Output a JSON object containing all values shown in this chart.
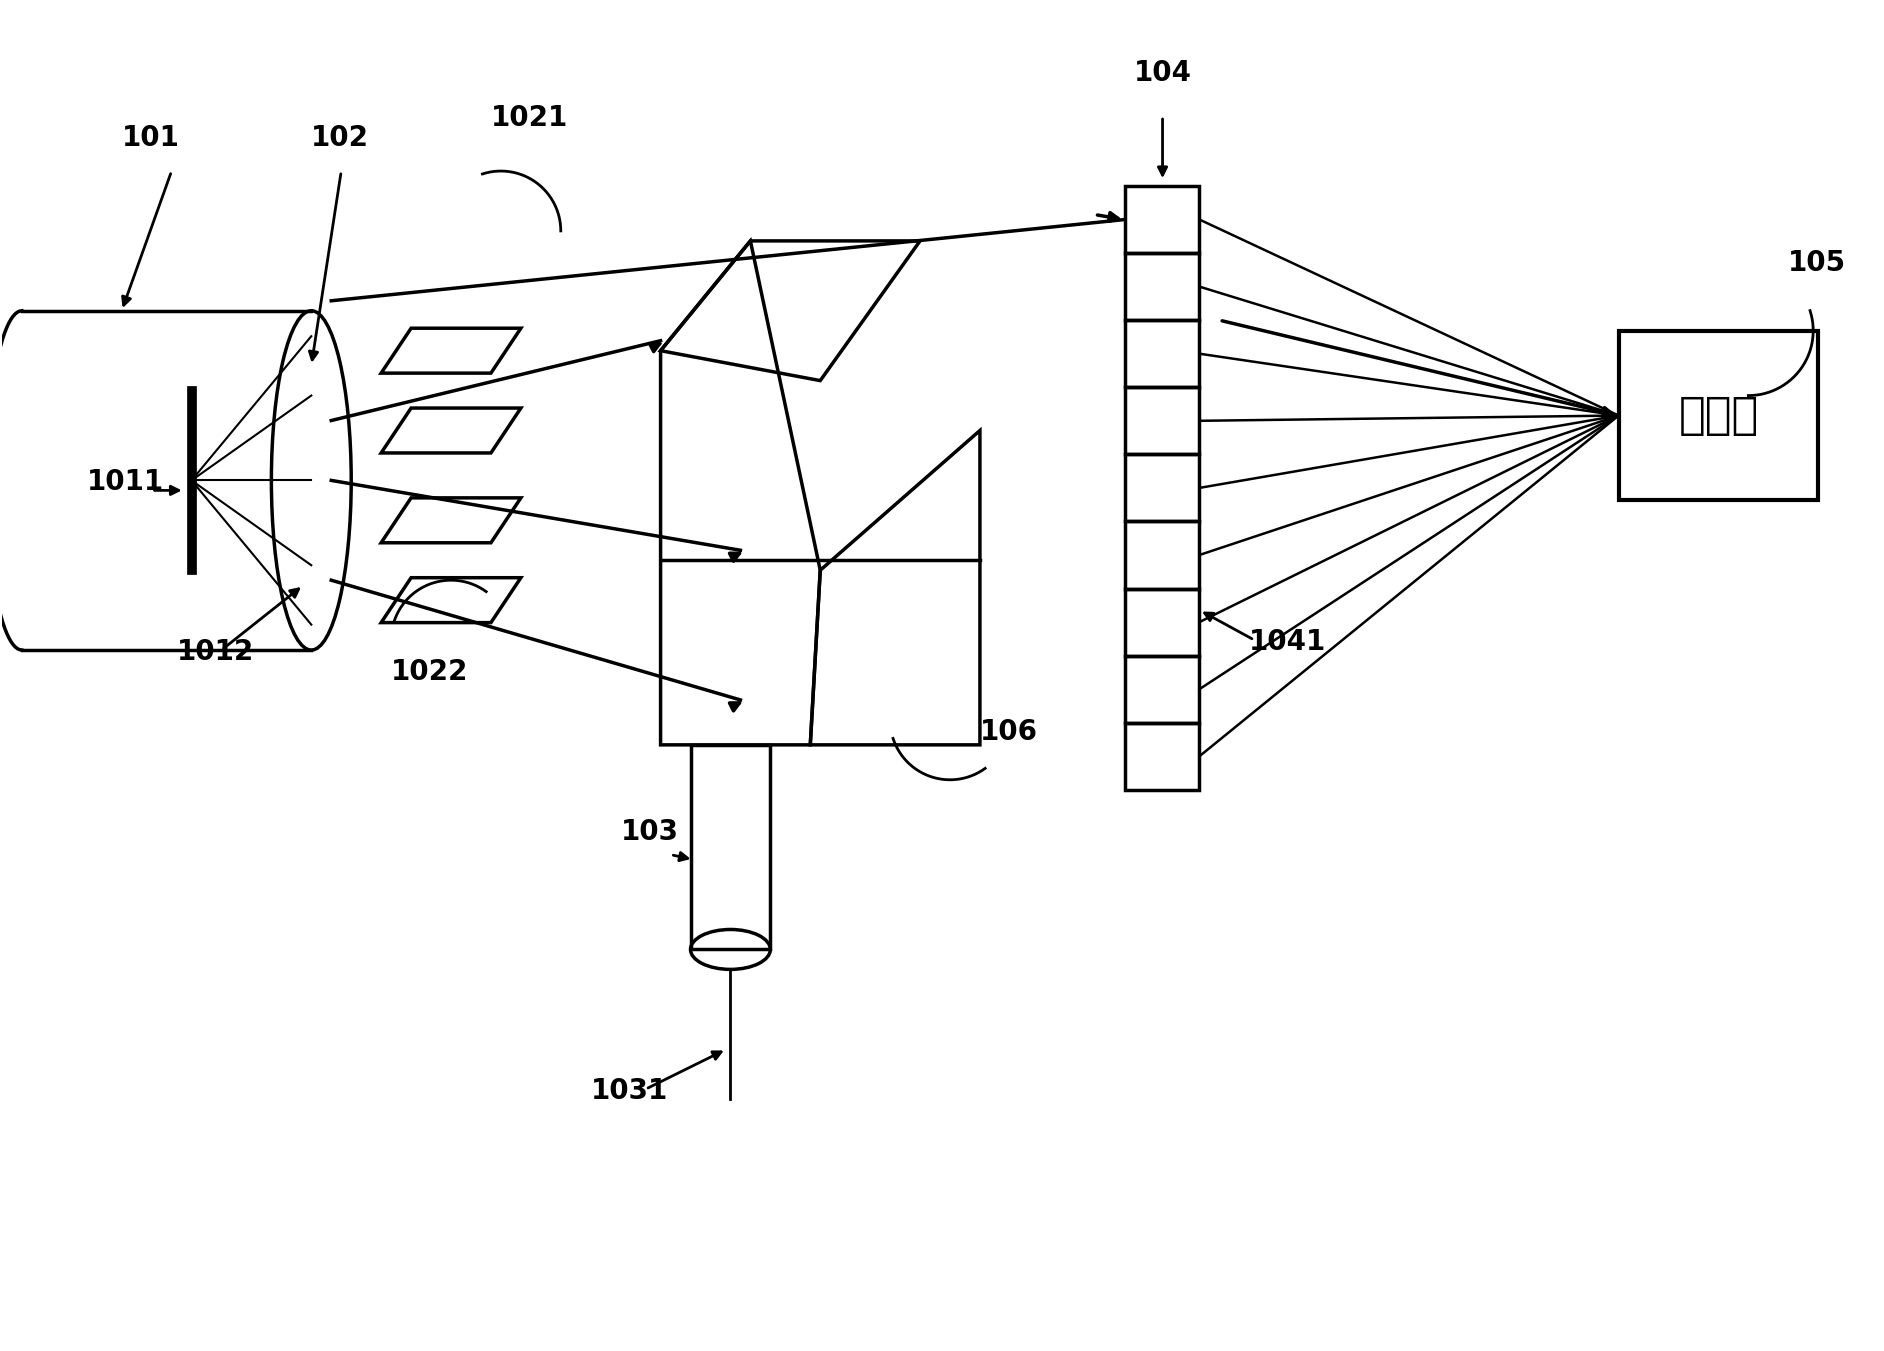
{
  "bg_color": "#ffffff",
  "line_color": "#000000",
  "label_fontsize": 20,
  "chinese_text": "处理器",
  "figsize": [
    18.84,
    13.51
  ],
  "dpi": 100
}
